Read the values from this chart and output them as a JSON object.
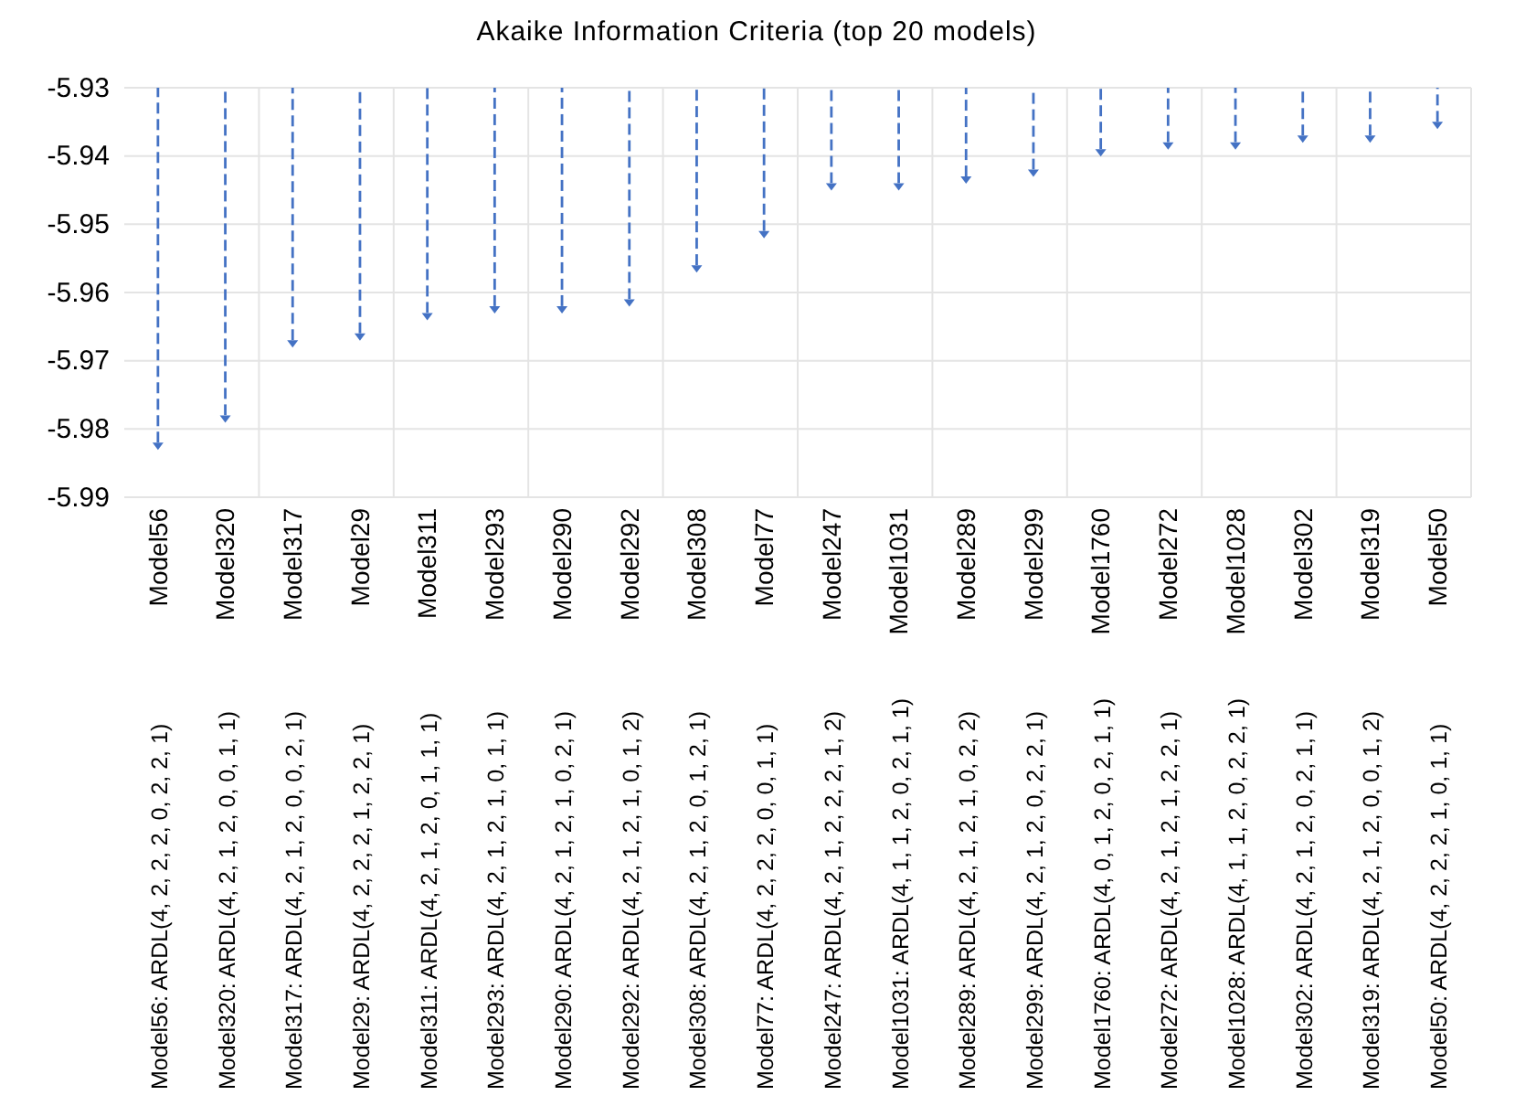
{
  "chart_data": {
    "type": "bar",
    "title": "Akaike Information Criteria (top 20 models)",
    "categories": [
      "Model56",
      "Model320",
      "Model317",
      "Model29",
      "Model311",
      "Model293",
      "Model290",
      "Model292",
      "Model308",
      "Model77",
      "Model247",
      "Model1031",
      "Model289",
      "Model299",
      "Model1760",
      "Model272",
      "Model1028",
      "Model302",
      "Model319",
      "Model50"
    ],
    "values": [
      -5.982,
      -5.978,
      -5.967,
      -5.966,
      -5.963,
      -5.962,
      -5.962,
      -5.961,
      -5.956,
      -5.951,
      -5.944,
      -5.944,
      -5.943,
      -5.942,
      -5.939,
      -5.938,
      -5.938,
      -5.937,
      -5.937,
      -5.935
    ],
    "color": "#4472c4",
    "line_style": "dashed",
    "ylim": [
      -5.99,
      -5.93
    ],
    "yticks": [
      -5.99,
      -5.98,
      -5.97,
      -5.96,
      -5.95,
      -5.94,
      -5.93
    ],
    "grid": true,
    "annotations": [
      "Model56: ARDL(4, 2, 2, 2, 0, 2, 2, 1)",
      "Model320: ARDL(4, 2, 1, 2, 0, 0, 1, 1)",
      "Model317: ARDL(4, 2, 1, 2, 0, 0, 2, 1)",
      "Model29: ARDL(4, 2, 2, 2, 1, 2, 2, 1)",
      "Model311: ARDL(4, 2, 1, 2, 0, 1, 1, 1)",
      "Model293: ARDL(4, 2, 1, 2, 1, 0, 1, 1)",
      "Model290: ARDL(4, 2, 1, 2, 1, 0, 2, 1)",
      "Model292: ARDL(4, 2, 1, 2, 1, 0, 1, 2)",
      "Model308: ARDL(4, 2, 1, 2, 0, 1, 2, 1)",
      "Model77: ARDL(4, 2, 2, 2, 0, 0, 1, 1)",
      "Model247: ARDL(4, 2, 1, 2, 2, 2, 1, 2)",
      "Model1031: ARDL(4, 1, 1, 2, 0, 2, 1, 1)",
      "Model289: ARDL(4, 2, 1, 2, 1, 0, 2, 2)",
      "Model299: ARDL(4, 2, 1, 2, 0, 2, 2, 1)",
      "Model1760: ARDL(4, 0, 1, 2, 0, 2, 1, 1)",
      "Model272: ARDL(4, 2, 1, 2, 1, 2, 2, 1)",
      "Model1028: ARDL(4, 1, 1, 2, 0, 2, 2, 1)",
      "Model302: ARDL(4, 2, 1, 2, 0, 2, 1, 1)",
      "Model319: ARDL(4, 2, 1, 2, 0, 0, 1, 2)",
      "Model50: ARDL(4, 2, 2, 2, 1, 0, 1, 1)"
    ]
  }
}
